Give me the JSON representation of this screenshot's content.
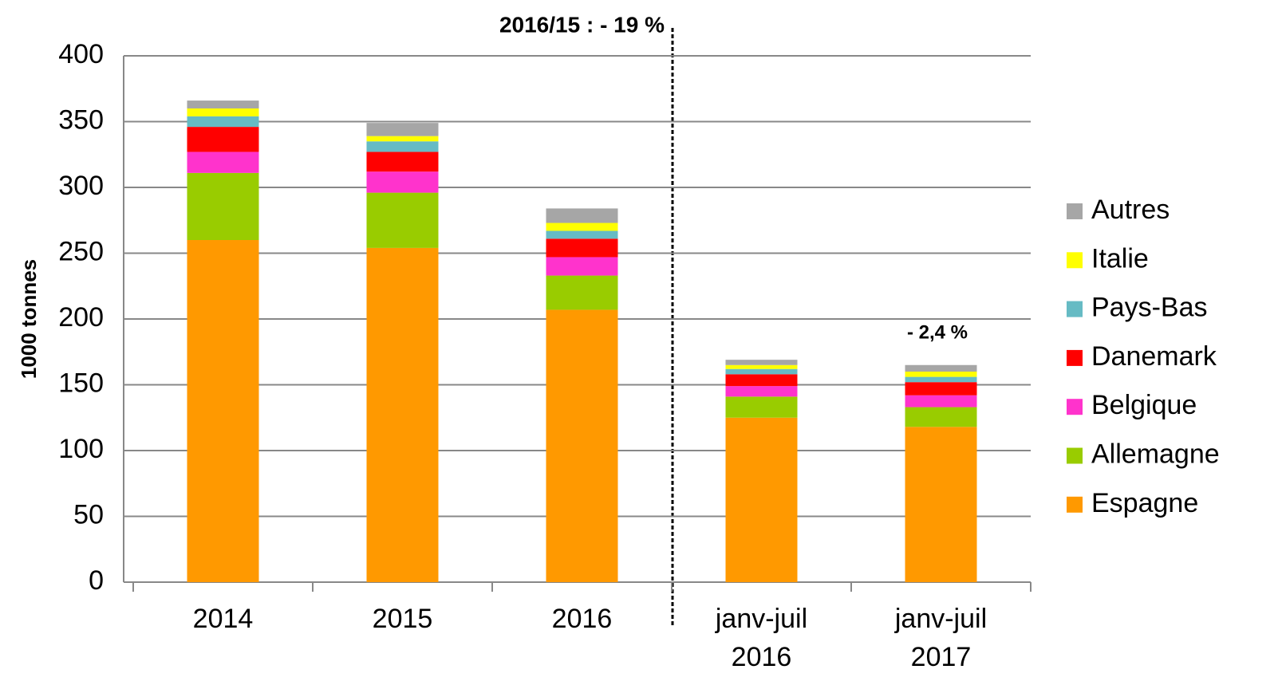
{
  "chart_data": {
    "type": "stacked_bar",
    "annotations": [
      "2016/15 : - 19 %",
      "- 2,4 %"
    ],
    "y_label": "1000 tonnes",
    "categories": [
      "2014",
      "2015",
      "2016",
      "janv-juil 2016",
      "janv-juil 2017"
    ],
    "series": [
      {
        "name": "Espagne",
        "color": "#ff9900",
        "values": [
          260,
          254,
          207,
          125,
          118
        ]
      },
      {
        "name": "Allemagne",
        "color": "#99cc00",
        "values": [
          51,
          42,
          26,
          16,
          15
        ]
      },
      {
        "name": "Belgique",
        "color": "#ff33cc",
        "values": [
          16,
          16,
          14,
          8,
          9
        ]
      },
      {
        "name": "Danemark",
        "color": "#ff0000",
        "values": [
          19,
          15,
          14,
          9,
          10
        ]
      },
      {
        "name": "Pays-Bas",
        "color": "#66bbc4",
        "values": [
          8,
          8,
          6,
          4,
          4
        ]
      },
      {
        "name": "Italie",
        "color": "#ffff00",
        "values": [
          6,
          4,
          6,
          3,
          4
        ]
      },
      {
        "name": "Autres",
        "color": "#a6a6a6",
        "values": [
          6,
          10,
          11,
          4,
          5
        ]
      }
    ],
    "ylim": [
      0,
      400
    ],
    "yticks": [
      0,
      50,
      100,
      150,
      200,
      250,
      300,
      350,
      400
    ],
    "grid": true,
    "legend": "right"
  }
}
